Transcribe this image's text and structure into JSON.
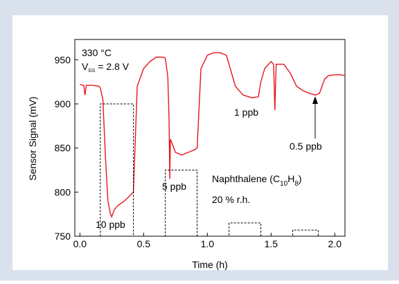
{
  "chart_data": {
    "type": "line",
    "x_label": "Time (h)",
    "y_label": "Sensor Signal (mV)",
    "xlim": [
      -0.04,
      2.08
    ],
    "ylim": [
      750,
      973
    ],
    "xticks": [
      {
        "value": 0,
        "label": "0.0"
      },
      0.5,
      {
        "value": 1,
        "label": "1.0"
      },
      1.5,
      {
        "value": 2,
        "label": "2.0"
      }
    ],
    "yticks": [
      750,
      800,
      850,
      900,
      950
    ],
    "series": [
      {
        "color": "#e8141c",
        "x": [
          0,
          0.03,
          0.04,
          0.05,
          0.1,
          0.15,
          0.16,
          0.18,
          0.2,
          0.22,
          0.24,
          0.25,
          0.27,
          0.3,
          0.35,
          0.4,
          0.42,
          0.45,
          0.5,
          0.55,
          0.6,
          0.65,
          0.67,
          0.69,
          0.7,
          0.705,
          0.71,
          0.75,
          0.8,
          0.85,
          0.9,
          0.92,
          0.95,
          1.0,
          1.05,
          1.1,
          1.15,
          1.18,
          1.22,
          1.28,
          1.35,
          1.4,
          1.42,
          1.45,
          1.5,
          1.52,
          1.53,
          1.54,
          1.6,
          1.65,
          1.7,
          1.75,
          1.8,
          1.85,
          1.88,
          1.92,
          1.95,
          2.0,
          2.05,
          2.08
        ],
        "values": [
          922,
          921,
          910,
          921,
          921,
          920,
          918,
          905,
          840,
          790,
          775,
          772,
          780,
          785,
          790,
          797,
          800,
          920,
          940,
          948,
          953,
          953,
          952,
          930,
          880,
          815,
          860,
          845,
          842,
          845,
          848,
          850,
          940,
          955,
          958,
          958,
          955,
          940,
          920,
          910,
          907,
          908,
          925,
          940,
          948,
          945,
          893,
          945,
          945,
          935,
          920,
          915,
          912,
          910,
          912,
          928,
          932,
          933,
          933,
          932
        ]
      },
      {
        "color": "#000000",
        "dashed": true,
        "x": [
          0.16,
          0.16,
          0.42,
          0.42,
          0.67,
          0.67,
          0.92,
          0.92,
          1.17,
          1.17,
          1.42,
          1.42,
          1.67,
          1.67,
          1.87,
          1.87
        ],
        "values": [
          750,
          900,
          900,
          750,
          750,
          825,
          825,
          750,
          750,
          765,
          765,
          750,
          750,
          757,
          757,
          750
        ]
      }
    ],
    "annotations": {
      "temperature": "330 °C",
      "gate_voltage": [
        "V",
        "GS",
        " = 2.8 V"
      ],
      "gas": [
        "Naphthalene (C",
        "10",
        "H",
        "8",
        ")"
      ],
      "humidity": "20 % r.h.",
      "conc_10": "10 ppb",
      "conc_5": "5 ppb",
      "conc_1": "1 ppb",
      "conc_05": "0.5 ppb"
    }
  }
}
